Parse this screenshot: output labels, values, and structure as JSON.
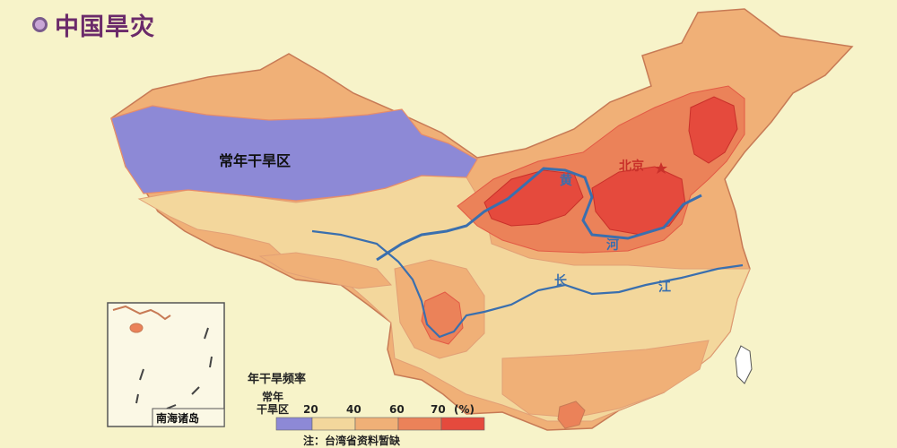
{
  "title": "中国旱灾",
  "regions": {
    "perennial_dry": "常年干旱区",
    "beijing": "北京",
    "huang_1": "黄",
    "huang_2": "河",
    "chang_1": "长",
    "chang_2": "江",
    "south_china_sea": "南海诸岛"
  },
  "legend": {
    "title": "年干旱频率",
    "perennial_label_1": "常年",
    "perennial_label_2": "干旱区",
    "ticks": [
      "20",
      "40",
      "60",
      "70"
    ],
    "unit": "(%)",
    "colors": [
      "#8d89d6",
      "#f3d79c",
      "#f0b077",
      "#eb8259",
      "#e54a3d"
    ]
  },
  "note": "注：台湾省资料暂缺"
}
